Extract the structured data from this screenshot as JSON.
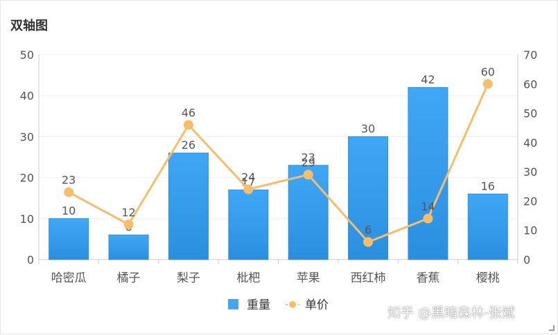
{
  "title": "双轴图",
  "watermark": "知乎 @黑暗森林-张斌",
  "colors": {
    "bar": "#3fa7f5",
    "bar_dark": "#2b8fe0",
    "line": "#f7bd6a",
    "axis_text": "#555555",
    "grid": "#efefef"
  },
  "chart_data": {
    "type": "bar",
    "categories": [
      "哈密瓜",
      "橘子",
      "梨子",
      "枇杷",
      "苹果",
      "西红柿",
      "香蕉",
      "樱桃"
    ],
    "series": [
      {
        "name": "重量",
        "type": "bar",
        "axis": "left",
        "values": [
          10,
          6,
          26,
          17,
          23,
          30,
          42,
          16
        ]
      },
      {
        "name": "单价",
        "type": "line",
        "axis": "right",
        "values": [
          23,
          12,
          46,
          24,
          29,
          6,
          14,
          60
        ]
      }
    ],
    "y_left": {
      "min": 0,
      "max": 50,
      "ticks": [
        0,
        10,
        20,
        30,
        40,
        50
      ]
    },
    "y_right": {
      "min": 0,
      "max": 70,
      "ticks": [
        0,
        10,
        20,
        30,
        40,
        50,
        60,
        70
      ]
    },
    "grid": true,
    "legend": "bottom-center"
  }
}
